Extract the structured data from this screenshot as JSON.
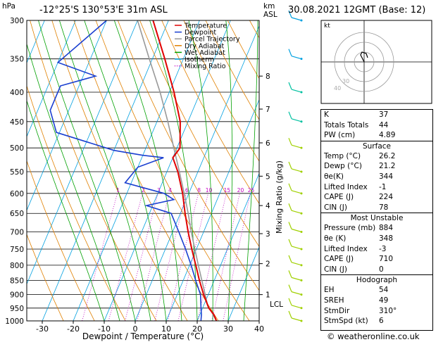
{
  "header": {
    "location": "-12°25'S  130°53'E  31m  ASL",
    "datetime": "30.08.2021  12GMT  (Base: 12)",
    "hpa_label": "hPa",
    "km_label": "km\nASL"
  },
  "footer": {
    "credit": "© weatheronline.co.uk"
  },
  "legend": [
    {
      "label": "Temperature",
      "color": "#e00000",
      "style": "solid"
    },
    {
      "label": "Dewpoint",
      "color": "#1a3fd0",
      "style": "solid"
    },
    {
      "label": "Parcel Trajectory",
      "color": "#999999",
      "style": "solid"
    },
    {
      "label": "Dry Adiabat",
      "color": "#e08000",
      "style": "solid"
    },
    {
      "label": "Wet Adiabat",
      "color": "#00a000",
      "style": "solid"
    },
    {
      "label": "Isotherm",
      "color": "#00a0e0",
      "style": "solid"
    },
    {
      "label": "Mixing Ratio",
      "color": "#c000c0",
      "style": "dotted"
    }
  ],
  "hodograph": {
    "label": "kt",
    "rings": [
      "10",
      "20",
      "30"
    ],
    "ring_labels": [
      "40",
      "30"
    ]
  },
  "indices": {
    "rows": [
      {
        "k": "K",
        "v": "37"
      },
      {
        "k": "Totals Totals",
        "v": "44"
      },
      {
        "k": "PW (cm)",
        "v": "4.89"
      }
    ],
    "surface": {
      "title": "Surface",
      "rows": [
        {
          "k": "Temp (°C)",
          "v": "26.2"
        },
        {
          "k": "Dewp (°C)",
          "v": "21.2"
        },
        {
          "k": "θe(K)",
          "v": "344"
        },
        {
          "k": "Lifted Index",
          "v": "-1"
        },
        {
          "k": "CAPE (J)",
          "v": "224"
        },
        {
          "k": "CIN (J)",
          "v": "78"
        }
      ]
    },
    "most_unstable": {
      "title": "Most Unstable",
      "rows": [
        {
          "k": "Pressure (mb)",
          "v": "884"
        },
        {
          "k": "θe (K)",
          "v": "348"
        },
        {
          "k": "Lifted Index",
          "v": "-3"
        },
        {
          "k": "CAPE (J)",
          "v": "710"
        },
        {
          "k": "CIN (J)",
          "v": "0"
        }
      ]
    },
    "hodograph": {
      "title": "Hodograph",
      "rows": [
        {
          "k": "EH",
          "v": "54"
        },
        {
          "k": "SREH",
          "v": "49"
        },
        {
          "k": "StmDir",
          "v": "310°"
        },
        {
          "k": "StmSpd (kt)",
          "v": "6"
        }
      ]
    }
  },
  "chart_data": {
    "type": "line",
    "subtype": "skew-T log-p",
    "xlabel": "Dewpoint / Temperature (°C)",
    "ylabel": "hPa",
    "right_label": "Mixing Ratio (g/kg)",
    "xlim": [
      -35,
      40
    ],
    "ylim": [
      1000,
      300
    ],
    "y_scale": "log",
    "x_ticks": [
      "-30",
      "-20",
      "-10",
      "0",
      "10",
      "20",
      "30",
      "40"
    ],
    "pressure_levels": [
      300,
      350,
      400,
      450,
      500,
      550,
      600,
      650,
      700,
      750,
      800,
      850,
      900,
      950,
      1000
    ],
    "pressure_labels": [
      "300",
      "350",
      "400",
      "450",
      "500",
      "550",
      "600",
      "650",
      "700",
      "750",
      "800",
      "850",
      "900",
      "950",
      "1000"
    ],
    "km_ticks": [
      {
        "label": "8",
        "p": 375
      },
      {
        "label": "7",
        "p": 428
      },
      {
        "label": "6",
        "p": 490
      },
      {
        "label": "5",
        "p": 560
      },
      {
        "label": "4",
        "p": 630
      },
      {
        "label": "3",
        "p": 705
      },
      {
        "label": "2",
        "p": 795
      },
      {
        "label": "1",
        "p": 900
      }
    ],
    "lcl": {
      "label": "LCL",
      "p": 935
    },
    "mixing_ratio_labels": [
      "1",
      "2",
      "3",
      "4",
      "6",
      "8",
      "10",
      "15",
      "20",
      "25"
    ],
    "mixing_ratio_values": [
      1,
      2,
      3,
      4,
      6,
      8,
      10,
      15,
      20,
      25
    ],
    "series": [
      {
        "name": "Temperature",
        "color": "#e00000",
        "points": [
          [
            1000,
            26.2
          ],
          [
            975,
            24.5
          ],
          [
            950,
            22.0
          ],
          [
            925,
            20.3
          ],
          [
            900,
            18.5
          ],
          [
            850,
            15.2
          ],
          [
            800,
            12.0
          ],
          [
            750,
            8.5
          ],
          [
            700,
            5.0
          ],
          [
            650,
            1.5
          ],
          [
            600,
            -2.0
          ],
          [
            550,
            -6.5
          ],
          [
            520,
            -10.0
          ],
          [
            500,
            -9.0
          ],
          [
            450,
            -12.5
          ],
          [
            400,
            -18.5
          ],
          [
            350,
            -26.0
          ],
          [
            300,
            -35.0
          ]
        ]
      },
      {
        "name": "Dewpoint",
        "color": "#1a3fd0",
        "points": [
          [
            1000,
            21.2
          ],
          [
            975,
            20.5
          ],
          [
            950,
            19.5
          ],
          [
            900,
            17.5
          ],
          [
            850,
            14.0
          ],
          [
            800,
            10.5
          ],
          [
            750,
            6.5
          ],
          [
            700,
            2.0
          ],
          [
            650,
            -3.0
          ],
          [
            630,
            -12.0
          ],
          [
            615,
            -4.0
          ],
          [
            600,
            -8.0
          ],
          [
            575,
            -22.0
          ],
          [
            540,
            -20.0
          ],
          [
            520,
            -13.0
          ],
          [
            515,
            -20.0
          ],
          [
            505,
            -30.0
          ],
          [
            470,
            -51.0
          ],
          [
            430,
            -56.0
          ],
          [
            390,
            -56.0
          ],
          [
            375,
            -46.0
          ],
          [
            355,
            -60.0
          ],
          [
            300,
            -50.0
          ]
        ]
      },
      {
        "name": "Parcel Trajectory",
        "color": "#999999",
        "points": [
          [
            1000,
            26.2
          ],
          [
            935,
            21.0
          ],
          [
            900,
            19.0
          ],
          [
            850,
            16.0
          ],
          [
            800,
            12.8
          ],
          [
            750,
            9.5
          ],
          [
            700,
            6.0
          ],
          [
            650,
            2.5
          ],
          [
            600,
            -1.5
          ],
          [
            550,
            -6.0
          ],
          [
            500,
            -11.0
          ],
          [
            450,
            -16.5
          ],
          [
            400,
            -23.0
          ],
          [
            350,
            -31.0
          ],
          [
            300,
            -40.0
          ]
        ]
      }
    ],
    "wind_barbs": [
      {
        "p": 1000
      },
      {
        "p": 950
      },
      {
        "p": 900
      },
      {
        "p": 850
      },
      {
        "p": 800
      },
      {
        "p": 750
      },
      {
        "p": 700
      },
      {
        "p": 650
      },
      {
        "p": 600
      },
      {
        "p": 550
      },
      {
        "p": 500
      },
      {
        "p": 450
      },
      {
        "p": 400
      },
      {
        "p": 350
      },
      {
        "p": 300
      }
    ]
  }
}
